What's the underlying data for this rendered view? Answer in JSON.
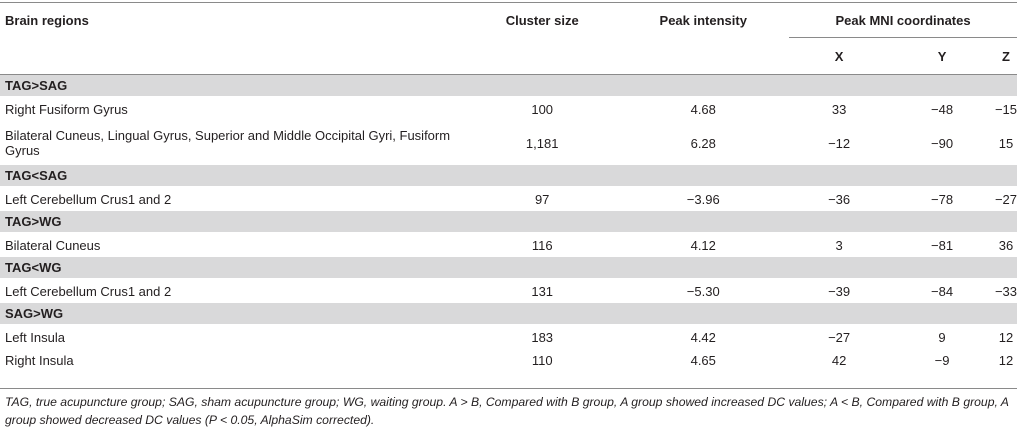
{
  "header": {
    "region": "Brain regions",
    "cluster": "Cluster size",
    "peak": "Peak intensity",
    "mni": "Peak MNI coordinates",
    "x": "X",
    "y": "Y",
    "z": "Z"
  },
  "sections": [
    {
      "label": "TAG>SAG",
      "rows": [
        {
          "region": "Right Fusiform Gyrus",
          "cluster": "100",
          "peak": "4.68",
          "x": "33",
          "y": "−48",
          "z": "−15"
        },
        {
          "region": "Bilateral Cuneus, Lingual Gyrus, Superior and Middle Occipital Gyri, Fusiform Gyrus",
          "cluster": "1,181",
          "peak": "6.28",
          "x": "−12",
          "y": "−90",
          "z": "15"
        }
      ]
    },
    {
      "label": "TAG<SAG",
      "rows": [
        {
          "region": "Left Cerebellum Crus1 and 2",
          "cluster": "97",
          "peak": "−3.96",
          "x": "−36",
          "y": "−78",
          "z": "−27"
        }
      ]
    },
    {
      "label": "TAG>WG",
      "rows": [
        {
          "region": "Bilateral Cuneus",
          "cluster": "116",
          "peak": "4.12",
          "x": "3",
          "y": "−81",
          "z": "36"
        }
      ]
    },
    {
      "label": "TAG<WG",
      "rows": [
        {
          "region": "Left Cerebellum Crus1 and 2",
          "cluster": "131",
          "peak": "−5.30",
          "x": "−39",
          "y": "−84",
          "z": "−33"
        }
      ]
    },
    {
      "label": "SAG>WG",
      "rows": [
        {
          "region": "Left Insula",
          "cluster": "183",
          "peak": "4.42",
          "x": "−27",
          "y": "9",
          "z": "12"
        },
        {
          "region": "Right Insula",
          "cluster": "110",
          "peak": "4.65",
          "x": "42",
          "y": "−9",
          "z": "12"
        }
      ]
    }
  ],
  "footnote": "TAG, true acupuncture group; SAG, sham acupuncture group; WG, waiting group. A > B, Compared with B group, A group showed increased DC values; A < B, Compared with B group, A group showed decreased DC values (P < 0.05, AlphaSim corrected)."
}
